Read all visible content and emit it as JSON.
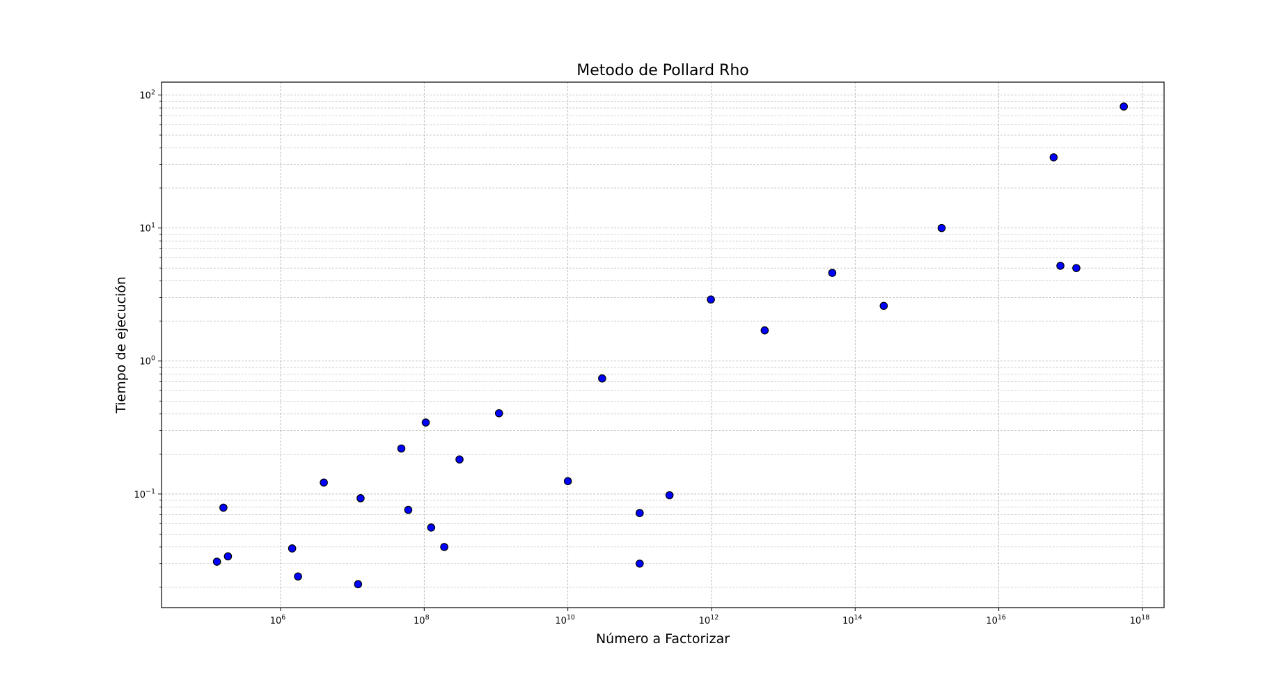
{
  "chart_data": {
    "type": "scatter",
    "title": "Metodo de Pollard Rho",
    "xlabel": "Número a Factorizar",
    "ylabel": "Tiempo de ejecución",
    "xscale": "log",
    "yscale": "log",
    "xlim": [
      22000.0,
      2e+18
    ],
    "ylim": [
      0.014,
      125
    ],
    "grid": true,
    "grid_which": "both",
    "marker_color": "#0000ff",
    "marker_edge": "#000000",
    "grid_color": "#b0b0b0",
    "x_ticks": [
      {
        "value": 1000000.0,
        "base": "10",
        "exp": "6"
      },
      {
        "value": 100000000.0,
        "base": "10",
        "exp": "8"
      },
      {
        "value": 10000000000.0,
        "base": "10",
        "exp": "10"
      },
      {
        "value": 1000000000000.0,
        "base": "10",
        "exp": "12"
      },
      {
        "value": 100000000000000.0,
        "base": "10",
        "exp": "14"
      },
      {
        "value": 1e+16,
        "base": "10",
        "exp": "16"
      },
      {
        "value": 1e+18,
        "base": "10",
        "exp": "18"
      }
    ],
    "y_ticks": [
      {
        "value": 0.1,
        "base": "10",
        "exp": "−1"
      },
      {
        "value": 1,
        "base": "10",
        "exp": "0"
      },
      {
        "value": 10,
        "base": "10",
        "exp": "1"
      },
      {
        "value": 100,
        "base": "10",
        "exp": "2"
      }
    ],
    "points": [
      {
        "x": 130000.0,
        "y": 0.031
      },
      {
        "x": 160000.0,
        "y": 0.079
      },
      {
        "x": 185000.0,
        "y": 0.034
      },
      {
        "x": 1450000.0,
        "y": 0.039
      },
      {
        "x": 1750000.0,
        "y": 0.024
      },
      {
        "x": 4000000.0,
        "y": 0.122
      },
      {
        "x": 12000000.0,
        "y": 0.021
      },
      {
        "x": 13000000.0,
        "y": 0.093
      },
      {
        "x": 48000000.0,
        "y": 0.22
      },
      {
        "x": 60000000.0,
        "y": 0.076
      },
      {
        "x": 105000000.0,
        "y": 0.345
      },
      {
        "x": 125000000.0,
        "y": 0.056
      },
      {
        "x": 190000000.0,
        "y": 0.04
      },
      {
        "x": 310000000.0,
        "y": 0.182
      },
      {
        "x": 1100000000.0,
        "y": 0.405
      },
      {
        "x": 10000000000.0,
        "y": 0.125
      },
      {
        "x": 30000000000.0,
        "y": 0.74
      },
      {
        "x": 100000000000.0,
        "y": 0.072
      },
      {
        "x": 100000000000.0,
        "y": 0.03
      },
      {
        "x": 260000000000.0,
        "y": 0.098
      },
      {
        "x": 980000000000.0,
        "y": 2.9
      },
      {
        "x": 5500000000000.0,
        "y": 1.7
      },
      {
        "x": 48000000000000.0,
        "y": 4.6
      },
      {
        "x": 250000000000000.0,
        "y": 2.6
      },
      {
        "x": 1600000000000000.0,
        "y": 10.0
      },
      {
        "x": 5.8e+16,
        "y": 34.0
      },
      {
        "x": 7.2e+16,
        "y": 5.2
      },
      {
        "x": 1.2e+17,
        "y": 5.0
      },
      {
        "x": 5.5e+17,
        "y": 82.0
      }
    ]
  }
}
